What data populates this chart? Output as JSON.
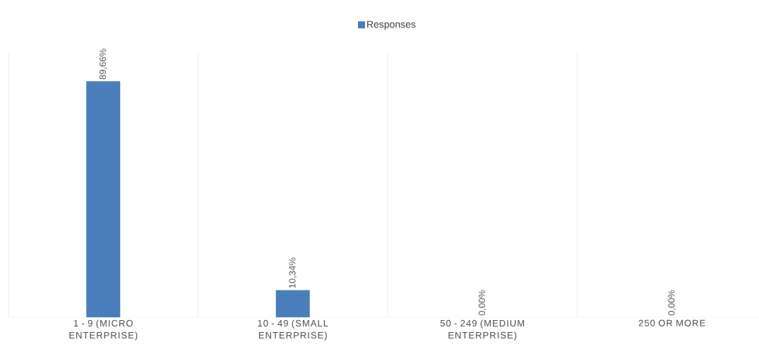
{
  "chart_data": {
    "type": "bar",
    "categories": [
      "1 - 9 (MICRO ENTERPRISE)",
      "10 - 49 (SMALL ENTERPRISE)",
      "50 - 249 (MEDIUM ENTERPRISE)",
      "250 OR MORE"
    ],
    "series": [
      {
        "name": "Responses",
        "color": "#4a7ebb",
        "values": [
          89.66,
          10.34,
          0,
          0
        ],
        "value_labels": [
          "89,66%",
          "10,34%",
          "0,00%",
          "0,00%"
        ]
      }
    ],
    "grid": "x",
    "legend": "top"
  }
}
